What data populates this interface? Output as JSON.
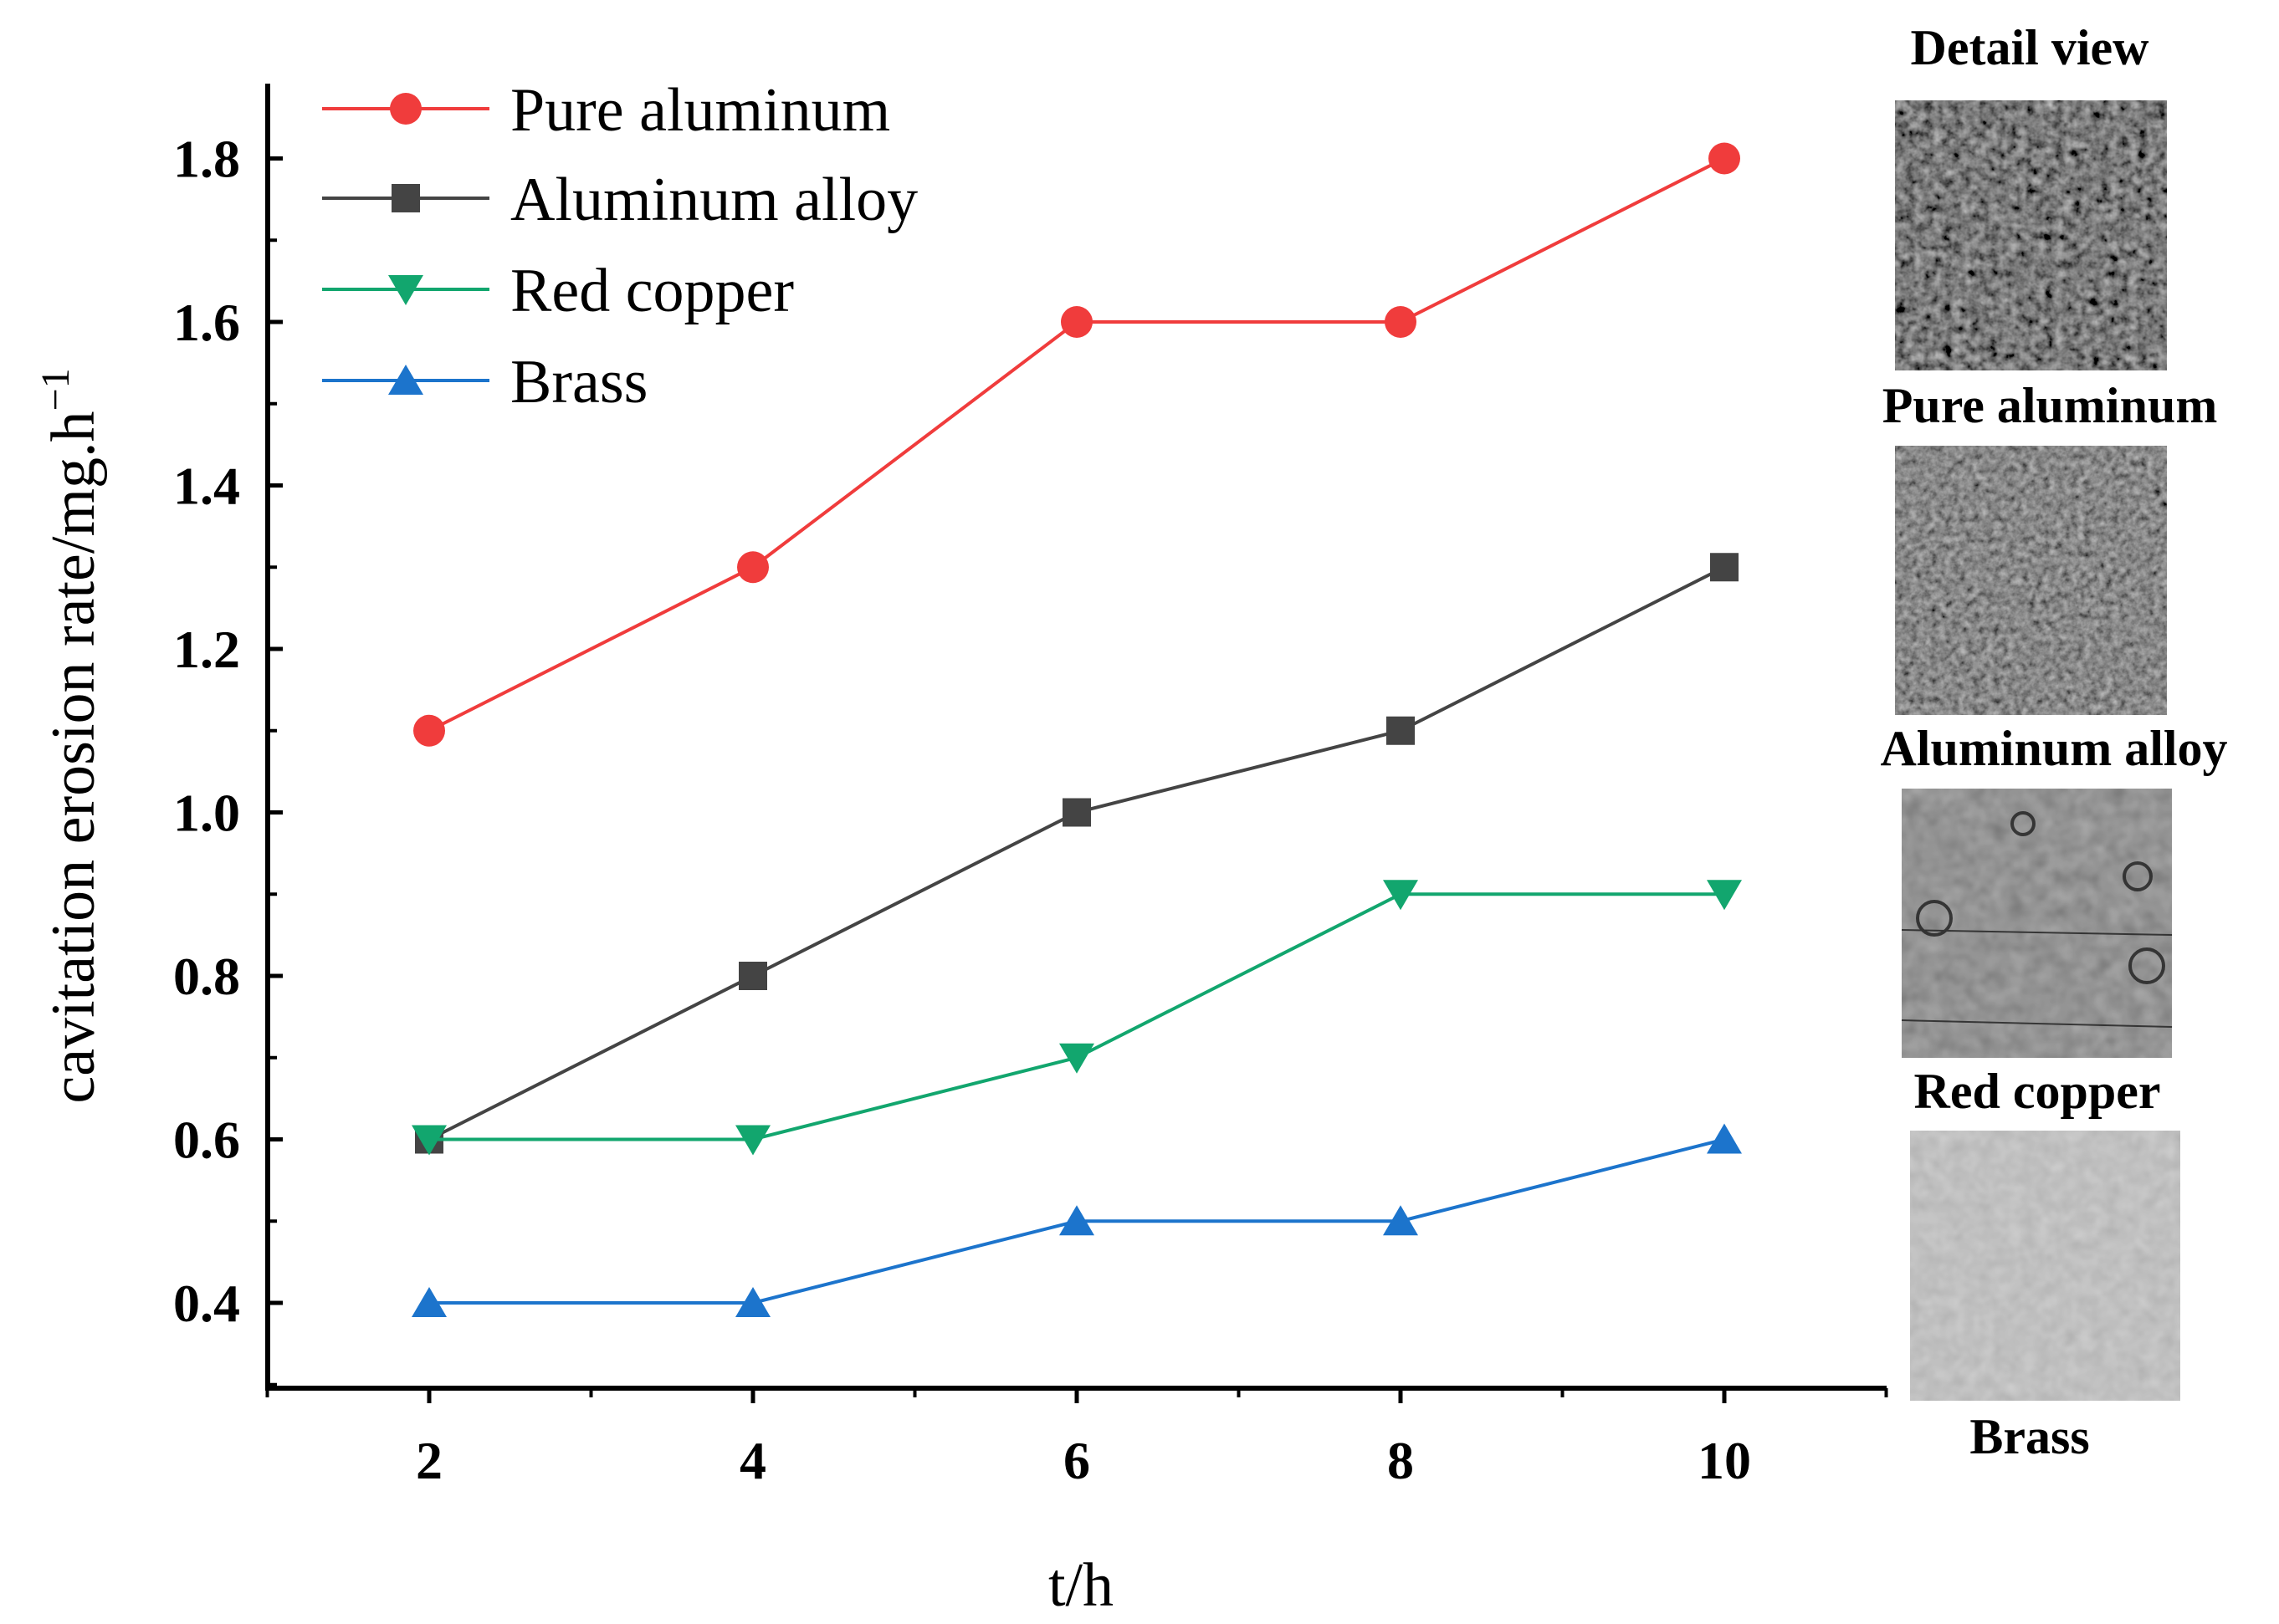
{
  "chart_data": {
    "type": "line",
    "x": [
      2,
      4,
      6,
      8,
      10
    ],
    "xlabel": "t/h",
    "ylabel_main": "cavitation erosion rate/mg.h",
    "ylabel_sup": "−1",
    "xlim": [
      1,
      11
    ],
    "ylim": [
      0.3,
      1.9
    ],
    "xticks": [
      "2",
      "4",
      "6",
      "8",
      "10"
    ],
    "yticks": [
      "0.4",
      "0.6",
      "0.8",
      "1.0",
      "1.2",
      "1.4",
      "1.6",
      "1.8"
    ],
    "grid": false,
    "legend_position": "top-left",
    "series": [
      {
        "name": "Pure aluminum",
        "values": [
          1.1,
          1.3,
          1.6,
          1.6,
          1.8
        ],
        "color": "#f03c3c",
        "marker": "circle"
      },
      {
        "name": "Aluminum alloy",
        "values": [
          0.6,
          0.8,
          1.0,
          1.1,
          1.3
        ],
        "color": "#444444",
        "marker": "square"
      },
      {
        "name": "Red copper",
        "values": [
          0.6,
          0.6,
          0.7,
          0.9,
          0.9
        ],
        "color": "#12a66e",
        "marker": "triangle-down"
      },
      {
        "name": "Brass",
        "values": [
          0.4,
          0.4,
          0.5,
          0.5,
          0.6
        ],
        "color": "#1c74cc",
        "marker": "triangle-up"
      }
    ]
  },
  "side_panel": {
    "title": "Detail view",
    "labels": [
      "Pure aluminum",
      "Aluminum alloy",
      "Red copper",
      "Brass"
    ]
  }
}
